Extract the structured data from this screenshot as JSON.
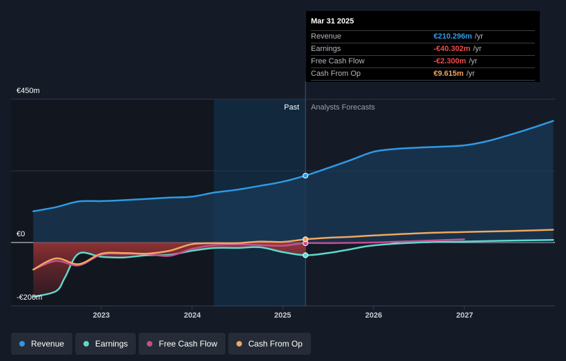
{
  "tooltip": {
    "date": "Mar 31 2025",
    "rows": [
      {
        "label": "Revenue",
        "value": "€210.296m",
        "unit": "/yr",
        "color": "#2f9ae6"
      },
      {
        "label": "Earnings",
        "value": "-€40.302m",
        "unit": "/yr",
        "color": "#ee4b4b"
      },
      {
        "label": "Free Cash Flow",
        "value": "-€2.300m",
        "unit": "/yr",
        "color": "#ee4b4b"
      },
      {
        "label": "Cash From Op",
        "value": "€9.615m",
        "unit": "/yr",
        "color": "#f0a861"
      }
    ]
  },
  "legend": [
    {
      "label": "Revenue",
      "color": "#2f9ae6"
    },
    {
      "label": "Earnings",
      "color": "#5fd9cc"
    },
    {
      "label": "Free Cash Flow",
      "color": "#c74d91"
    },
    {
      "label": "Cash From Op",
      "color": "#f0a861"
    }
  ],
  "regions": {
    "past": "Past",
    "forecast": "Analysts Forecasts"
  },
  "chart_data": {
    "type": "line",
    "y_tick_labels": [
      "€450m",
      "€0",
      "-€200m"
    ],
    "ylim": [
      -200,
      450
    ],
    "x_tick_labels": [
      "2023",
      "2024",
      "2025",
      "2026",
      "2027"
    ],
    "x_ticks": [
      2023,
      2024,
      2025,
      2026,
      2027
    ],
    "xlim": [
      2022.23,
      2027.98
    ],
    "past_boundary": 2025.25,
    "highlight_start": 2024.24,
    "grid": true,
    "series": [
      {
        "name": "Revenue",
        "color": "#2f9ae6",
        "x": [
          2022.25,
          2022.5,
          2022.75,
          2023.0,
          2023.25,
          2023.5,
          2023.75,
          2024.0,
          2024.25,
          2024.5,
          2024.75,
          2025.0,
          2025.25,
          2025.5,
          2025.75,
          2026.0,
          2026.25,
          2026.5,
          2026.75,
          2027.0,
          2027.25,
          2027.5,
          2027.75,
          2027.98
        ],
        "y": [
          98,
          111,
          129,
          130,
          133,
          137,
          141,
          144,
          157,
          166,
          178,
          191,
          210,
          234,
          259,
          285,
          294,
          298,
          301,
          305,
          318,
          338,
          360,
          382
        ]
      },
      {
        "name": "Earnings",
        "color": "#5fd9cc",
        "x": [
          2022.25,
          2022.5,
          2022.6,
          2022.75,
          2023.0,
          2023.25,
          2023.5,
          2023.75,
          2024.0,
          2024.25,
          2024.5,
          2024.75,
          2025.0,
          2025.25,
          2025.5,
          2025.75,
          2026.0,
          2026.5,
          2027.0,
          2027.5,
          2027.98
        ],
        "y": [
          -170,
          -153,
          -109,
          -35,
          -45,
          -47,
          -40,
          -39,
          -26,
          -17,
          -17,
          -15,
          -30,
          -40,
          -33,
          -21,
          -9,
          0,
          3,
          6,
          8
        ]
      },
      {
        "name": "Free Cash Flow",
        "color": "#c74d91",
        "x": [
          2022.25,
          2022.5,
          2022.75,
          2023.0,
          2023.25,
          2023.5,
          2023.75,
          2024.0,
          2024.25,
          2024.5,
          2024.75,
          2025.0,
          2025.25,
          2025.5,
          2026.0,
          2026.5,
          2027.0
        ],
        "y": [
          -85,
          -58,
          -72,
          -38,
          -35,
          -36,
          -42,
          -20,
          -8,
          -6,
          -8,
          -10,
          -2,
          -2,
          0,
          5,
          10
        ]
      },
      {
        "name": "Cash From Op",
        "color": "#f0a861",
        "x": [
          2022.25,
          2022.5,
          2022.75,
          2023.0,
          2023.25,
          2023.5,
          2023.75,
          2024.0,
          2024.25,
          2024.5,
          2024.75,
          2025.0,
          2025.25,
          2025.5,
          2025.75,
          2026.0,
          2026.5,
          2027.0,
          2027.5,
          2027.98
        ],
        "y": [
          -85,
          -50,
          -68,
          -35,
          -33,
          -35,
          -26,
          -5,
          -2,
          -2,
          3,
          2,
          10,
          15,
          18,
          22,
          29,
          33,
          36,
          40
        ]
      }
    ]
  }
}
